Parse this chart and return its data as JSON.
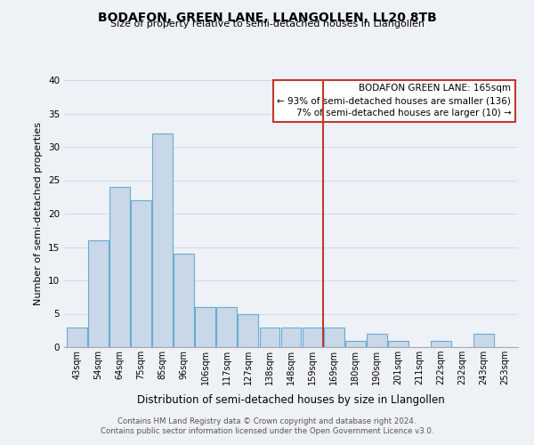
{
  "title": "BODAFON, GREEN LANE, LLANGOLLEN, LL20 8TB",
  "subtitle": "Size of property relative to semi-detached houses in Llangollen",
  "xlabel": "Distribution of semi-detached houses by size in Llangollen",
  "ylabel": "Number of semi-detached properties",
  "bin_labels": [
    "43sqm",
    "54sqm",
    "64sqm",
    "75sqm",
    "85sqm",
    "96sqm",
    "106sqm",
    "117sqm",
    "127sqm",
    "138sqm",
    "148sqm",
    "159sqm",
    "169sqm",
    "180sqm",
    "190sqm",
    "201sqm",
    "211sqm",
    "222sqm",
    "232sqm",
    "243sqm",
    "253sqm"
  ],
  "bar_values": [
    3,
    16,
    24,
    22,
    32,
    14,
    6,
    6,
    5,
    3,
    3,
    3,
    3,
    1,
    2,
    1,
    0,
    1,
    0,
    2,
    0
  ],
  "bar_color": "#c8d8e8",
  "bar_edge_color": "#6aaad4",
  "grid_color": "#d0dce8",
  "background_color": "#eef2f7",
  "ylim": [
    0,
    40
  ],
  "yticks": [
    0,
    5,
    10,
    15,
    20,
    25,
    30,
    35,
    40
  ],
  "annotation_title": "BODAFON GREEN LANE: 165sqm",
  "annotation_line1": "← 93% of semi-detached houses are smaller (136)",
  "annotation_line2": "7% of semi-detached houses are larger (10) →",
  "property_line_color": "#c0392b",
  "footnote1": "Contains HM Land Registry data © Crown copyright and database right 2024.",
  "footnote2": "Contains public sector information licensed under the Open Government Licence v3.0."
}
